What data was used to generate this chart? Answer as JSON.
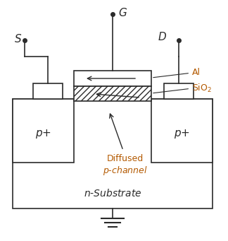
{
  "bg_color": "#ffffff",
  "line_color": "#2b2b2b",
  "orange_color": "#b35900",
  "figsize": [
    3.24,
    3.41
  ],
  "dpi": 100,
  "lw": 1.2
}
